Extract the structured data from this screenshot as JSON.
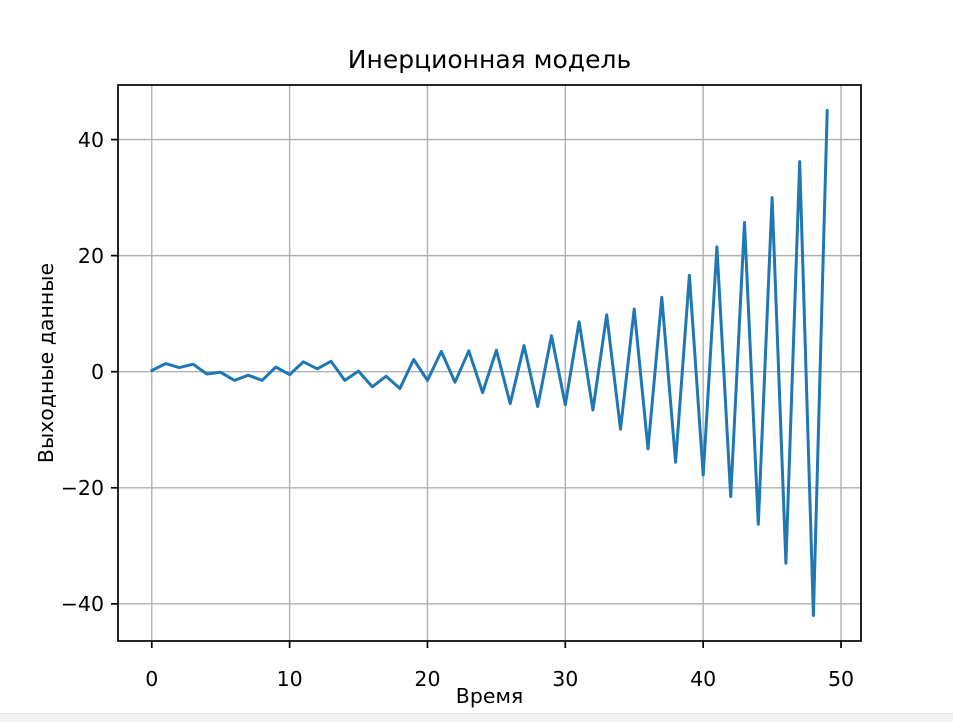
{
  "window": {
    "background": "#ffffff",
    "bottom_strip": {
      "color": "#f2f2f2",
      "border_color": "#e4e4e4"
    }
  },
  "chart_data": {
    "type": "line",
    "title": "Инерционная модель",
    "xlabel": "Время",
    "ylabel": "Выходные данные",
    "x": [
      0,
      1,
      2,
      3,
      4,
      5,
      6,
      7,
      8,
      9,
      10,
      11,
      12,
      13,
      14,
      15,
      16,
      17,
      18,
      19,
      20,
      21,
      22,
      23,
      24,
      25,
      26,
      27,
      28,
      29,
      30,
      31,
      32,
      33,
      34,
      35,
      36,
      37,
      38,
      39,
      40,
      41,
      42,
      43,
      44,
      45,
      46,
      47,
      48,
      49
    ],
    "y": [
      0.2,
      1.4,
      0.7,
      1.3,
      -0.4,
      -0.1,
      -1.5,
      -0.6,
      -1.5,
      0.8,
      -0.5,
      1.7,
      0.5,
      1.8,
      -1.5,
      0.1,
      -2.6,
      -0.8,
      -2.9,
      2.1,
      -1.5,
      3.5,
      -1.8,
      3.6,
      -3.6,
      3.7,
      -5.5,
      4.5,
      -6.0,
      6.2,
      -5.7,
      8.6,
      -6.6,
      9.8,
      -9.9,
      10.8,
      -13.3,
      12.8,
      -15.6,
      16.6,
      -17.8,
      21.5,
      -21.5,
      25.7,
      -26.3,
      30.0,
      -33.0,
      36.2,
      -42.0,
      45.0
    ],
    "xlim": [
      -2.45,
      51.45
    ],
    "ylim": [
      -46.4,
      49.4
    ],
    "xticks": [
      0,
      10,
      20,
      30,
      40,
      50
    ],
    "xtick_labels": [
      "0",
      "10",
      "20",
      "30",
      "40",
      "50"
    ],
    "yticks": [
      40,
      20,
      0,
      -20,
      -40
    ],
    "ytick_labels": [
      "40",
      "20",
      "0",
      "−20",
      "−40"
    ],
    "grid": true,
    "grid_color": "#b0b0b0",
    "line_color": "#1f77b4",
    "line_width": 3,
    "axes_color": "#000000",
    "tick_color": "#000000",
    "legend": "none",
    "marker": "none"
  }
}
